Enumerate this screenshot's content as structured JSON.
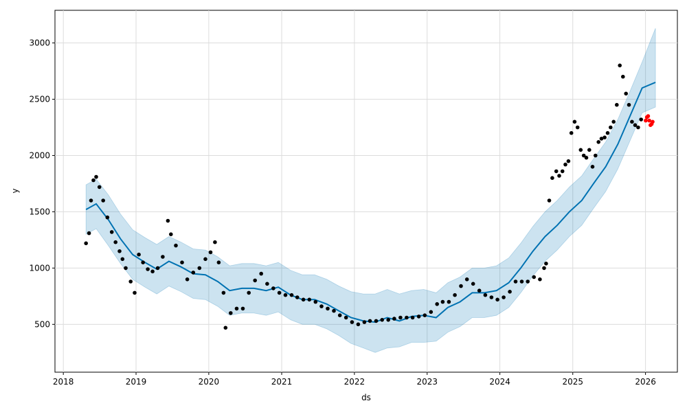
{
  "chart_data": {
    "type": "scatter",
    "title": "",
    "xlabel": "ds",
    "ylabel": "y",
    "x_range": [
      "2017-11-20",
      "2026-06-10"
    ],
    "y_range": [
      75,
      3290
    ],
    "grid": true,
    "x_ticks": [
      "2018",
      "2019",
      "2020",
      "2021",
      "2022",
      "2023",
      "2024",
      "2025",
      "2026"
    ],
    "y_ticks": [
      500,
      1000,
      1500,
      2000,
      2500,
      3000
    ],
    "colors": {
      "observed": "#000000",
      "future_observed": "#ff0000",
      "forecast_line": "#0072b2",
      "uncertainty_band": "#0072b2"
    },
    "series": [
      {
        "role": "forecast",
        "x": [
          "2018-04-25",
          "2018-06-15",
          "2018-08-15",
          "2018-10-15",
          "2018-12-15",
          "2019-02-15",
          "2019-04-15",
          "2019-06-15",
          "2019-08-15",
          "2019-10-15",
          "2019-12-15",
          "2020-02-15",
          "2020-04-15",
          "2020-06-15",
          "2020-08-15",
          "2020-10-15",
          "2020-12-15",
          "2021-02-15",
          "2021-04-15",
          "2021-06-15",
          "2021-08-15",
          "2021-10-15",
          "2021-12-15",
          "2022-02-15",
          "2022-04-15",
          "2022-06-15",
          "2022-08-15",
          "2022-10-15",
          "2022-12-15",
          "2023-02-15",
          "2023-04-15",
          "2023-06-15",
          "2023-08-15",
          "2023-10-15",
          "2023-12-15",
          "2024-02-15",
          "2024-04-15",
          "2024-06-15",
          "2024-08-15",
          "2024-10-15",
          "2024-12-15",
          "2025-02-15",
          "2025-04-15",
          "2025-06-15",
          "2025-08-15",
          "2025-10-15",
          "2025-12-15",
          "2026-02-20"
        ],
        "yhat": [
          1520,
          1570,
          1430,
          1260,
          1120,
          1050,
          990,
          1060,
          1010,
          950,
          940,
          880,
          800,
          820,
          820,
          800,
          830,
          760,
          720,
          720,
          680,
          620,
          560,
          530,
          520,
          560,
          530,
          570,
          580,
          560,
          650,
          700,
          780,
          780,
          800,
          870,
          1000,
          1150,
          1280,
          1380,
          1500,
          1600,
          1750,
          1900,
          2100,
          2350,
          2600,
          2650
        ],
        "lower": [
          1300,
          1350,
          1200,
          1040,
          900,
          830,
          770,
          840,
          790,
          730,
          720,
          660,
          580,
          600,
          600,
          580,
          610,
          540,
          500,
          500,
          460,
          400,
          330,
          290,
          250,
          290,
          300,
          340,
          340,
          350,
          430,
          480,
          560,
          560,
          580,
          650,
          780,
          930,
          1060,
          1160,
          1280,
          1380,
          1530,
          1680,
          1880,
          2130,
          2380,
          2430
        ],
        "upper": [
          1740,
          1790,
          1650,
          1480,
          1340,
          1270,
          1210,
          1280,
          1230,
          1170,
          1160,
          1100,
          1020,
          1040,
          1040,
          1020,
          1050,
          980,
          940,
          940,
          900,
          840,
          790,
          770,
          770,
          810,
          770,
          800,
          810,
          780,
          870,
          920,
          1000,
          1000,
          1020,
          1090,
          1220,
          1370,
          1500,
          1600,
          1720,
          1820,
          1970,
          2120,
          2320,
          2570,
          2830,
          3130
        ]
      },
      {
        "role": "observed",
        "x": [
          "2018-04-25",
          "2018-05-10",
          "2018-05-20",
          "2018-06-01",
          "2018-06-15",
          "2018-07-01",
          "2018-07-20",
          "2018-08-10",
          "2018-09-01",
          "2018-09-20",
          "2018-10-10",
          "2018-10-25",
          "2018-11-10",
          "2018-12-05",
          "2018-12-25",
          "2019-01-15",
          "2019-02-05",
          "2019-03-01",
          "2019-03-25",
          "2019-04-20",
          "2019-05-15",
          "2019-06-10",
          "2019-06-25",
          "2019-07-20",
          "2019-08-20",
          "2019-09-15",
          "2019-10-15",
          "2019-11-15",
          "2019-12-15",
          "2020-01-10",
          "2020-02-01",
          "2020-02-20",
          "2020-03-15",
          "2020-03-25",
          "2020-04-20",
          "2020-05-20",
          "2020-06-20",
          "2020-07-20",
          "2020-08-20",
          "2020-09-20",
          "2020-10-20",
          "2020-11-20",
          "2020-12-20",
          "2021-01-20",
          "2021-02-20",
          "2021-03-20",
          "2021-04-20",
          "2021-05-20",
          "2021-06-20",
          "2021-07-20",
          "2021-08-20",
          "2021-09-20",
          "2021-10-20",
          "2021-11-20",
          "2021-12-20",
          "2022-01-20",
          "2022-02-20",
          "2022-03-20",
          "2022-04-20",
          "2022-05-20",
          "2022-06-20",
          "2022-07-20",
          "2022-08-20",
          "2022-09-20",
          "2022-10-20",
          "2022-11-20",
          "2022-12-20",
          "2023-01-20",
          "2023-02-20",
          "2023-03-20",
          "2023-04-20",
          "2023-05-20",
          "2023-06-20",
          "2023-07-20",
          "2023-08-20",
          "2023-09-20",
          "2023-10-20",
          "2023-11-20",
          "2023-12-20",
          "2024-01-20",
          "2024-02-20",
          "2024-03-20",
          "2024-04-20",
          "2024-05-20",
          "2024-06-20",
          "2024-07-20",
          "2024-08-10",
          "2024-08-20",
          "2024-09-05",
          "2024-09-20",
          "2024-10-10",
          "2024-10-25",
          "2024-11-10",
          "2024-11-25",
          "2024-12-10",
          "2024-12-25",
          "2025-01-10",
          "2025-01-25",
          "2025-02-10",
          "2025-02-25",
          "2025-03-10",
          "2025-03-25",
          "2025-04-10",
          "2025-04-25",
          "2025-05-10",
          "2025-05-25",
          "2025-06-10",
          "2025-06-25",
          "2025-07-10",
          "2025-07-25",
          "2025-08-10",
          "2025-08-25",
          "2025-09-10",
          "2025-09-25",
          "2025-10-10",
          "2025-10-25",
          "2025-11-10",
          "2025-11-25",
          "2025-12-10"
        ],
        "y": [
          1220,
          1310,
          1600,
          1780,
          1810,
          1720,
          1600,
          1450,
          1320,
          1230,
          1150,
          1080,
          1000,
          880,
          780,
          1120,
          1050,
          990,
          970,
          1000,
          1100,
          1420,
          1300,
          1200,
          1050,
          900,
          960,
          1000,
          1080,
          1140,
          1230,
          1050,
          780,
          470,
          600,
          640,
          640,
          780,
          890,
          950,
          860,
          820,
          780,
          760,
          760,
          740,
          720,
          720,
          700,
          660,
          640,
          620,
          580,
          560,
          520,
          500,
          520,
          530,
          530,
          540,
          540,
          550,
          560,
          560,
          560,
          570,
          580,
          610,
          680,
          700,
          700,
          760,
          840,
          900,
          860,
          800,
          760,
          740,
          720,
          740,
          790,
          880,
          880,
          880,
          920,
          900,
          1000,
          1040,
          1600,
          1800,
          1860,
          1820,
          1860,
          1920,
          1950,
          2200,
          2300,
          2250,
          2050,
          2000,
          1980,
          2050,
          1900,
          2000,
          2120,
          2150,
          2160,
          2200,
          2250,
          2300,
          2450,
          2800,
          2700,
          2550,
          2450,
          2300,
          2270,
          2250,
          2320
        ],
        "fill": "#000000"
      },
      {
        "role": "future_observed",
        "x": [
          "2026-01-02",
          "2026-01-08",
          "2026-01-14",
          "2026-01-20",
          "2026-01-26",
          "2026-02-01",
          "2026-02-06"
        ],
        "y": [
          2310,
          2340,
          2350,
          2310,
          2270,
          2280,
          2300
        ],
        "fill": "#ff0000"
      }
    ]
  }
}
